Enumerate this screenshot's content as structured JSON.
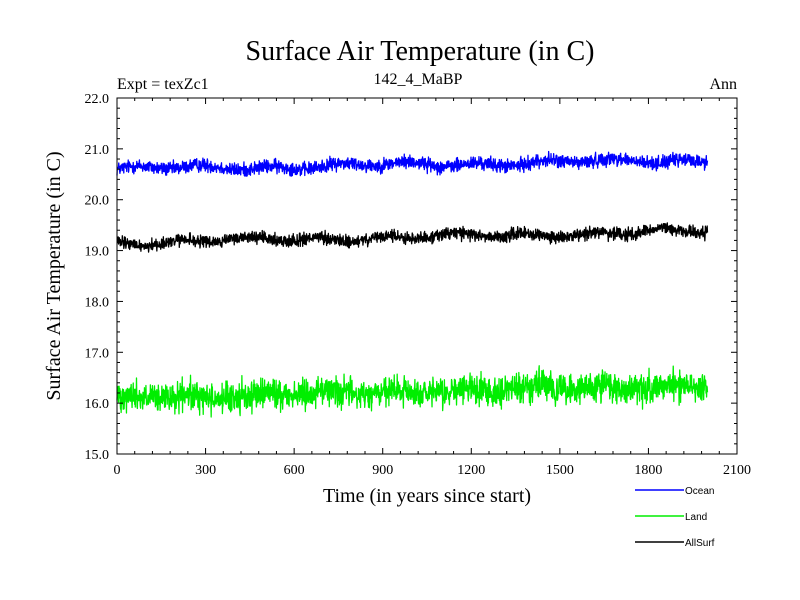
{
  "chart_data": {
    "type": "line",
    "title": "Surface Air Temperature (in C)",
    "subtitle_left": "Expt = texZc1",
    "subtitle_center": "142_4_MaBP",
    "subtitle_right": "Ann",
    "xlabel": "Time (in years since start)",
    "ylabel": "Surface Air Temperature (in C)",
    "xlim": [
      0,
      2100
    ],
    "ylim": [
      15.0,
      22.0
    ],
    "x_ticks": [
      0,
      300,
      600,
      900,
      1200,
      1500,
      1800,
      2100
    ],
    "x_tick_labels": [
      "0",
      "300",
      "600",
      "900",
      "1200",
      "1500",
      "1800",
      "2100"
    ],
    "y_ticks": [
      15.0,
      16.0,
      17.0,
      18.0,
      19.0,
      20.0,
      21.0,
      22.0
    ],
    "y_tick_labels": [
      "15.0",
      "16.0",
      "17.0",
      "18.0",
      "19.0",
      "20.0",
      "21.0",
      "22.0"
    ],
    "x_range_of_data": [
      0,
      2000
    ],
    "series": [
      {
        "name": "Ocean",
        "color": "#0000ff",
        "start_mean": 20.6,
        "end_mean": 20.78,
        "noise_amplitude": 0.1,
        "min": 20.45,
        "max": 21.05
      },
      {
        "name": "Land",
        "color": "#00ee00",
        "start_mean": 16.1,
        "end_mean": 16.35,
        "noise_amplitude": 0.22,
        "min": 15.6,
        "max": 16.9
      },
      {
        "name": "AllSurf",
        "color": "#000000",
        "start_mean": 19.15,
        "end_mean": 19.38,
        "noise_amplitude": 0.09,
        "min": 18.95,
        "max": 19.6
      }
    ],
    "legend": [
      {
        "label": "Ocean",
        "color": "#0000ff"
      },
      {
        "label": "Land",
        "color": "#00ee00"
      },
      {
        "label": "AllSurf",
        "color": "#000000"
      }
    ],
    "legend_position": "bottom-right"
  }
}
